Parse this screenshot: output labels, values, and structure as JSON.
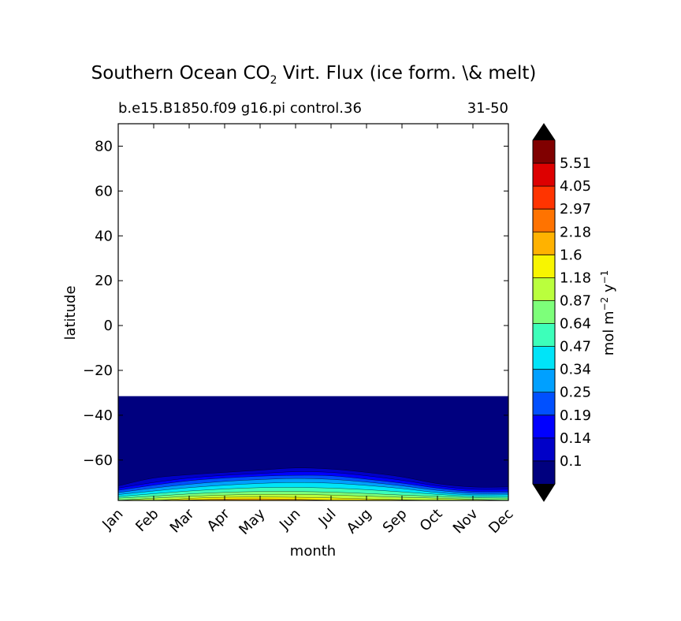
{
  "chart_data": {
    "type": "heatmap",
    "title_main": "Southern Ocean CO",
    "title_subscript": "2",
    "title_rest": " Virt. Flux (ice form. \\& melt)",
    "subtitle_left": "b.e15.B1850.f09 g16.pi control.36",
    "subtitle_right": "31-50",
    "xlabel": "month",
    "ylabel": "latitude",
    "x_categories": [
      "Jan",
      "Feb",
      "Mar",
      "Apr",
      "May",
      "Jun",
      "Jul",
      "Aug",
      "Sep",
      "Oct",
      "Nov",
      "Dec"
    ],
    "xlim": [
      0,
      11
    ],
    "y_ticks": [
      80,
      60,
      40,
      20,
      0,
      -20,
      -40,
      -60
    ],
    "y_tick_labels": [
      "80",
      "60",
      "40",
      "20",
      "0",
      "−20",
      "−40",
      "−60"
    ],
    "ylim": [
      -78,
      90
    ],
    "data_north_limit": -31.5,
    "colorbar": {
      "label_main": "mol m",
      "label_exp1": "−2",
      "label_mid": " y",
      "label_exp2": "−1",
      "tick_labels": [
        "5.51",
        "4.05",
        "2.97",
        "2.18",
        "1.6",
        "1.18",
        "0.87",
        "0.64",
        "0.47",
        "0.34",
        "0.25",
        "0.19",
        "0.14",
        "0.1"
      ],
      "levels_bottom_to_top": [
        "#00007f",
        "#0000c8",
        "#0000ff",
        "#0050ff",
        "#00a0ff",
        "#00e4f8",
        "#3dffba",
        "#7dff7a",
        "#baff3d",
        "#f8f500",
        "#ffb200",
        "#ff7300",
        "#ff3400",
        "#dd0000",
        "#800000"
      ],
      "over_color": "#000000",
      "under_color": "#000000"
    },
    "contour_bands": [
      {
        "level": 1,
        "color": "#0000c8",
        "lat": [
          -71.5,
          -68,
          -66.5,
          -65.5,
          -64.5,
          -63.5,
          -64,
          -65.5,
          -67.5,
          -70.5,
          -72,
          -72
        ]
      },
      {
        "level": 2,
        "color": "#0000ff",
        "lat": [
          -72.5,
          -70,
          -68,
          -66.8,
          -66,
          -65.2,
          -65.5,
          -67,
          -69,
          -71.5,
          -73,
          -73
        ]
      },
      {
        "level": 3,
        "color": "#0050ff",
        "lat": [
          -73.5,
          -71.2,
          -69.2,
          -68,
          -67.2,
          -66.8,
          -67,
          -68.5,
          -70.3,
          -72.5,
          -74,
          -74
        ]
      },
      {
        "level": 4,
        "color": "#00a0ff",
        "lat": [
          -74.5,
          -72.5,
          -70.8,
          -69.5,
          -68.7,
          -68.2,
          -68.6,
          -69.8,
          -71.5,
          -73.5,
          -74.8,
          -74.8
        ]
      },
      {
        "level": 5,
        "color": "#00e4f8",
        "lat": [
          -75.4,
          -73.8,
          -72.3,
          -71.2,
          -70.4,
          -70,
          -70.3,
          -71.3,
          -72.7,
          -74.5,
          -75.5,
          -75.5
        ]
      },
      {
        "level": 6,
        "color": "#3dffba",
        "lat": [
          -76.3,
          -75,
          -73.8,
          -72.9,
          -72.3,
          -72.2,
          -72.5,
          -73.2,
          -74.2,
          -75.3,
          -76.2,
          -76.3
        ]
      },
      {
        "level": 7,
        "color": "#7dff7a",
        "lat": [
          -77,
          -76.1,
          -75.1,
          -74.4,
          -74,
          -74,
          -74.3,
          -74.9,
          -75.6,
          -76.2,
          -76.8,
          -77
        ]
      },
      {
        "level": 8,
        "color": "#baff3d",
        "lat": [
          -78,
          -77,
          -76.2,
          -75.6,
          -75.3,
          -75.3,
          -75.6,
          -76.1,
          -76.6,
          -77,
          -77.5,
          -78
        ]
      },
      {
        "level": 9,
        "color": "#f8f500",
        "lat": [
          -78,
          -78,
          -77.1,
          -76.6,
          -76.5,
          -76.6,
          -76.9,
          -77.3,
          -77.7,
          -78,
          -78,
          -78
        ]
      },
      {
        "level": 10,
        "color": "#ffb200",
        "lat": [
          -78,
          -78,
          -77.8,
          -77.4,
          -77.3,
          -77.5,
          -77.9,
          -78,
          -78,
          -78,
          -78,
          -78
        ]
      }
    ]
  }
}
